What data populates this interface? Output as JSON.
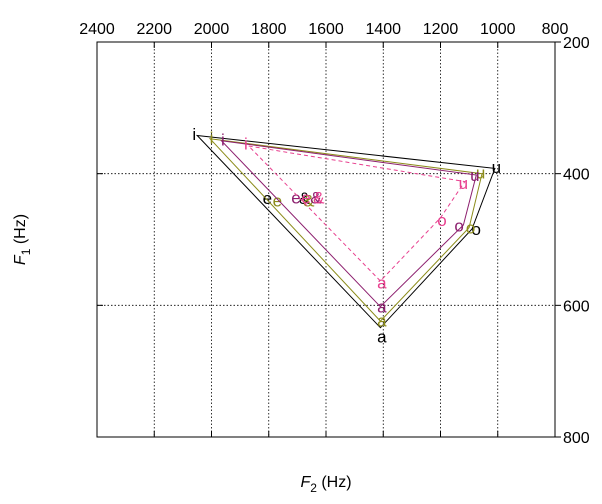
{
  "chart_data": {
    "type": "scatter",
    "xlabel": {
      "main": "F",
      "sub": "2",
      "unit": " (Hz)"
    },
    "ylabel": {
      "main": "F",
      "sub": "1",
      "unit": " (Hz)"
    },
    "x_axis": {
      "reversed": true,
      "range": [
        2400,
        800
      ],
      "ticks": [
        2400,
        2200,
        2000,
        1800,
        1600,
        1400,
        1200,
        1000,
        800
      ],
      "position": "top"
    },
    "y_axis": {
      "reversed": true,
      "range": [
        200,
        800
      ],
      "ticks": [
        200,
        400,
        600,
        800
      ],
      "position": "right"
    },
    "grid": true,
    "colors": {
      "black": "#000000",
      "olive": "#8c8c1a",
      "purple": "#8c1f6e",
      "pink": "#e8408f"
    },
    "series": [
      {
        "color": "#000000",
        "style": "solid",
        "polygon": [
          [
            2050,
            342
          ],
          [
            1010,
            392
          ],
          [
            1090,
            484
          ],
          [
            1410,
            634
          ]
        ],
        "labels": [
          {
            "t": "i",
            "x": 2060,
            "y": 340
          },
          {
            "t": "u",
            "x": 1005,
            "y": 390
          },
          {
            "t": "e",
            "x": 1805,
            "y": 437
          },
          {
            "t": "&",
            "x": 1675,
            "y": 437
          },
          {
            "t": "o",
            "x": 1075,
            "y": 484
          },
          {
            "t": "a",
            "x": 1405,
            "y": 647
          }
        ]
      },
      {
        "color": "#8c8c1a",
        "style": "solid",
        "polygon": [
          [
            2005,
            347
          ],
          [
            1055,
            400
          ],
          [
            1100,
            482
          ],
          [
            1410,
            624
          ]
        ],
        "labels": [
          {
            "t": "i",
            "x": 2000,
            "y": 345
          },
          {
            "t": "u",
            "x": 1060,
            "y": 398
          },
          {
            "t": "e",
            "x": 1770,
            "y": 441
          },
          {
            "t": "&",
            "x": 1660,
            "y": 441
          },
          {
            "t": "o",
            "x": 1095,
            "y": 482
          },
          {
            "t": "a",
            "x": 1405,
            "y": 623
          }
        ]
      },
      {
        "color": "#8c1f6e",
        "style": "solid",
        "polygon": [
          [
            1965,
            350
          ],
          [
            1075,
            402
          ],
          [
            1120,
            478
          ],
          [
            1410,
            602
          ]
        ],
        "labels": [
          {
            "t": "i",
            "x": 1960,
            "y": 348
          },
          {
            "t": "u",
            "x": 1080,
            "y": 402
          },
          {
            "t": "e",
            "x": 1705,
            "y": 436
          },
          {
            "t": "&",
            "x": 1635,
            "y": 436
          },
          {
            "t": "o",
            "x": 1135,
            "y": 479
          },
          {
            "t": "a",
            "x": 1405,
            "y": 602
          }
        ]
      },
      {
        "color": "#e8408f",
        "style": "dashed",
        "polygon": [
          [
            1870,
            358
          ],
          [
            1115,
            412
          ],
          [
            1200,
            467
          ],
          [
            1410,
            563
          ]
        ],
        "labels": [
          {
            "t": "i",
            "x": 1880,
            "y": 354
          },
          {
            "t": "u",
            "x": 1120,
            "y": 414
          },
          {
            "t": "e",
            "x": 1670,
            "y": 436
          },
          {
            "t": "&",
            "x": 1625,
            "y": 436
          },
          {
            "t": "o",
            "x": 1195,
            "y": 470
          },
          {
            "t": "a",
            "x": 1405,
            "y": 565
          }
        ]
      }
    ]
  }
}
